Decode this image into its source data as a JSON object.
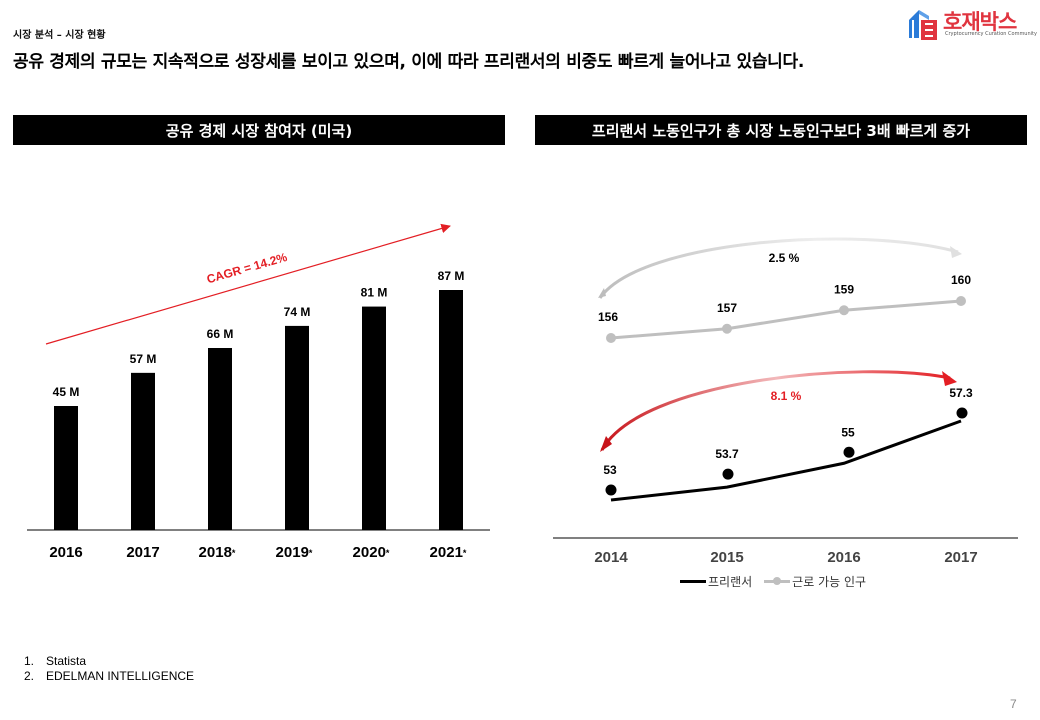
{
  "header": {
    "breadcrumb": "시장 분석 – 시장 현황",
    "headline": "공유 경제의 규모는 지속적으로 성장세를 보이고 있으며, 이에 따라 프리랜서의 비중도 빠르게 늘어나고 있습니다.",
    "logo_text": "호재박스",
    "logo_subtitle": "Cryptocurrency Curation Community",
    "logo_icon": "box-logo-icon"
  },
  "colors": {
    "accent_red": "#e31e24",
    "bar_black": "#000000",
    "series_gray": "#bfbfbf",
    "logo_red": "#e0343f",
    "logo_blue": "#2b7bd8"
  },
  "chart_data": [
    {
      "type": "bar",
      "title": "공유 경제 시장 참여자 (미국)",
      "categories": [
        "2016",
        "2017",
        "2018*",
        "2019*",
        "2020*",
        "2021*"
      ],
      "values": [
        45,
        57,
        66,
        74,
        81,
        87
      ],
      "value_labels": [
        "45 M",
        "57 M",
        "66 M",
        "74 M",
        "81 M",
        "87 M"
      ],
      "unit": "M",
      "annotation": "CAGR = 14.2%",
      "xlabel": "",
      "ylabel": "",
      "ylim": [
        0,
        100
      ],
      "grid": false
    },
    {
      "type": "line",
      "title": "프리랜서 노동인구가 총 시장 노동인구보다 3배 빠르게 증가",
      "x": [
        "2014",
        "2015",
        "2016",
        "2017"
      ],
      "series": [
        {
          "name": "근로 가능 인구",
          "values": [
            156,
            157,
            159,
            160
          ],
          "value_labels": [
            "156",
            "157",
            "159",
            "160"
          ],
          "growth_annotation": "2.5 %",
          "color": "#bfbfbf"
        },
        {
          "name": "프리랜서",
          "values": [
            53,
            53.7,
            55,
            57.3
          ],
          "value_labels": [
            "53",
            "53.7",
            "55",
            "57.3"
          ],
          "growth_annotation": "8.1 %",
          "color": "#000000"
        }
      ],
      "legend": [
        "프리랜서",
        "근로 가능 인구"
      ],
      "legend_position": "bottom",
      "xlabel": "",
      "ylabel": "",
      "grid": false
    }
  ],
  "footer": {
    "sources": [
      {
        "num": "1.",
        "text": "Statista"
      },
      {
        "num": "2.",
        "text": "EDELMAN  INTELLIGENCE"
      }
    ],
    "page_number": "7"
  }
}
